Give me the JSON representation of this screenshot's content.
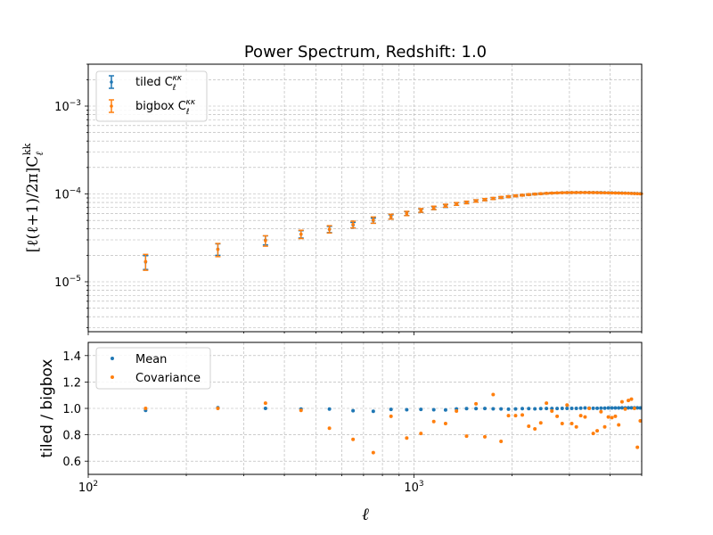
{
  "colors": {
    "tiled": "#1f77b4",
    "bigbox": "#ff7f0e"
  },
  "chart_data": [
    {
      "type": "scatter",
      "title": "Power Spectrum, Redshift: 1.0",
      "xlabel": "ℓ",
      "ylabel": "[ℓ(ℓ+1)/2π]C",
      "ylabel_sub": "ℓ",
      "ylabel_sup": "kk",
      "xscale": "log",
      "yscale": "log",
      "xlim": [
        100,
        5000
      ],
      "ylim": [
        2.7e-06,
        0.003
      ],
      "grid": true,
      "legend_position": "top-left",
      "legend": [
        {
          "label": "tiled C",
          "sub": "ℓ",
          "sup": "κκ"
        },
        {
          "label": "bigbox C",
          "sub": "ℓ",
          "sup": "κκ"
        }
      ],
      "series": [
        {
          "name": "tiled C_ℓ^κκ",
          "color": "tiled",
          "x": [
            150,
            250,
            350,
            450,
            550,
            650,
            750,
            850,
            950,
            1050,
            1150,
            1250,
            1350,
            1450,
            1550,
            1650,
            1750,
            1850,
            1950,
            2050,
            2150,
            2250,
            2350,
            2450,
            2550,
            2650,
            2750,
            2850,
            2950,
            3050,
            3150,
            3250,
            3350,
            3450,
            3550,
            3650,
            3750,
            3850,
            3950,
            4050,
            4150,
            4250,
            4350,
            4450,
            4550,
            4650,
            4750,
            4850,
            4950
          ],
          "y": [
            1.68e-05,
            2.35e-05,
            2.98e-05,
            3.48e-05,
            3.95e-05,
            4.42e-05,
            4.97e-05,
            5.48e-05,
            5.98e-05,
            6.45e-05,
            6.9e-05,
            7.28e-05,
            7.68e-05,
            8e-05,
            8.33e-05,
            8.62e-05,
            8.87e-05,
            9.1e-05,
            9.3e-05,
            9.5e-05,
            9.68e-05,
            9.82e-05,
            9.95e-05,
            0.0001005,
            0.0001015,
            0.0001022,
            0.0001028,
            0.0001033,
            0.0001036,
            0.0001038,
            0.000104,
            0.0001041,
            0.0001041,
            0.000104,
            0.0001039,
            0.0001038,
            0.0001036,
            0.0001034,
            0.0001032,
            0.000103,
            0.0001028,
            0.0001026,
            0.0001024,
            0.0001021,
            0.0001019,
            0.0001016,
            0.0001013,
            0.000101,
            0.0001007
          ],
          "yerr": [
            3e-06,
            3.5e-06,
            3.5e-06,
            3.3e-06,
            3.2e-06,
            3.2e-06,
            3.3e-06,
            3e-06,
            3e-06,
            2.8e-06,
            2.7e-06,
            2.6e-06,
            2.5e-06,
            2.4e-06,
            2.3e-06,
            2.2e-06,
            2.1e-06,
            2e-06,
            1.9e-06,
            1.8e-06,
            1.7e-06,
            1.7e-06,
            1.6e-06,
            1.6e-06,
            1.5e-06,
            1.5e-06,
            1.4e-06,
            1.4e-06,
            1.4e-06,
            1.3e-06,
            1.3e-06,
            1.3e-06,
            1.2e-06,
            1.2e-06,
            1.2e-06,
            1.2e-06,
            1.1e-06,
            1.1e-06,
            1.1e-06,
            1.1e-06,
            1.1e-06,
            1e-06,
            1e-06,
            1e-06,
            1e-06,
            1e-06,
            1e-06,
            1e-06,
            1e-06
          ]
        },
        {
          "name": "bigbox C_ℓ^κκ",
          "color": "bigbox",
          "x": [
            150,
            250,
            350,
            450,
            550,
            650,
            750,
            850,
            950,
            1050,
            1150,
            1250,
            1350,
            1450,
            1550,
            1650,
            1750,
            1850,
            1950,
            2050,
            2150,
            2250,
            2350,
            2450,
            2550,
            2650,
            2750,
            2850,
            2950,
            3050,
            3150,
            3250,
            3350,
            3450,
            3550,
            3650,
            3750,
            3850,
            3950,
            4050,
            4150,
            4250,
            4350,
            4450,
            4550,
            4650,
            4750,
            4850,
            4950
          ],
          "y": [
            1.7e-05,
            2.33e-05,
            2.94e-05,
            3.48e-05,
            3.97e-05,
            4.5e-05,
            5.05e-05,
            5.52e-05,
            6e-05,
            6.5e-05,
            6.95e-05,
            7.35e-05,
            7.7e-05,
            8e-05,
            8.32e-05,
            8.62e-05,
            8.88e-05,
            9.12e-05,
            9.32e-05,
            9.52e-05,
            9.68e-05,
            9.83e-05,
            9.96e-05,
            0.0001006,
            0.0001015,
            0.0001022,
            0.0001028,
            0.0001032,
            0.0001035,
            0.0001037,
            0.0001038,
            0.0001038,
            0.0001038,
            0.0001037,
            0.0001036,
            0.0001034,
            0.0001032,
            0.000103,
            0.0001028,
            0.0001026,
            0.0001024,
            0.0001022,
            0.000102,
            0.0001018,
            0.0001015,
            0.0001012,
            0.0001009,
            0.0001006,
            0.0001003
          ],
          "yerr": [
            3.5e-06,
            4e-06,
            4e-06,
            3.8e-06,
            3.8e-06,
            4e-06,
            4.2e-06,
            3.5e-06,
            3.4e-06,
            3.2e-06,
            3.1e-06,
            2.9e-06,
            2.8e-06,
            2.7e-06,
            2.6e-06,
            2.5e-06,
            2.4e-06,
            2.3e-06,
            2.2e-06,
            2.1e-06,
            2e-06,
            1.9e-06,
            1.9e-06,
            1.8e-06,
            1.7e-06,
            1.7e-06,
            1.6e-06,
            1.6e-06,
            1.5e-06,
            1.5e-06,
            1.5e-06,
            1.4e-06,
            1.4e-06,
            1.4e-06,
            1.3e-06,
            1.3e-06,
            1.3e-06,
            1.3e-06,
            1.2e-06,
            1.2e-06,
            1.2e-06,
            1.2e-06,
            1.2e-06,
            1.1e-06,
            1.1e-06,
            1.1e-06,
            1.1e-06,
            1.1e-06,
            1.1e-06
          ]
        }
      ],
      "xticks": [
        "10",
        "10"
      ],
      "xtick_sups": [
        "2",
        "3"
      ],
      "yticks": [
        "10",
        "10",
        "10"
      ],
      "ytick_sups": [
        "−5",
        "−4",
        "−3"
      ]
    },
    {
      "type": "scatter",
      "title": "",
      "xlabel": "ℓ",
      "ylabel": "tiled / bigbox",
      "xscale": "log",
      "xlim": [
        100,
        5000
      ],
      "ylim": [
        0.5,
        1.5
      ],
      "grid": true,
      "legend_position": "top-left",
      "xticks": [
        "10",
        "10"
      ],
      "xtick_sups": [
        "2",
        "3"
      ],
      "yticks": [
        "0.6",
        "0.8",
        "1.0",
        "1.2",
        "1.4"
      ],
      "series": [
        {
          "name": "Mean",
          "color": "tiled",
          "x": [
            150,
            250,
            350,
            450,
            550,
            650,
            750,
            850,
            950,
            1050,
            1150,
            1250,
            1350,
            1450,
            1550,
            1650,
            1750,
            1850,
            1950,
            2050,
            2150,
            2250,
            2350,
            2450,
            2550,
            2650,
            2750,
            2850,
            2950,
            3050,
            3150,
            3250,
            3350,
            3450,
            3550,
            3650,
            3750,
            3850,
            3950,
            4050,
            4150,
            4250,
            4350,
            4450,
            4550,
            4650,
            4750,
            4850,
            4950
          ],
          "y": [
            0.985,
            1.005,
            1.0,
            0.995,
            0.995,
            0.982,
            0.978,
            0.992,
            0.99,
            0.992,
            0.99,
            0.988,
            0.996,
            0.998,
            0.998,
            0.999,
            0.997,
            0.996,
            0.994,
            0.996,
            0.998,
            0.998,
            0.997,
            0.998,
            0.999,
            0.999,
            0.999,
            1.0,
            1.0,
            1.0,
            1.0,
            1.002,
            1.003,
            1.002,
            1.001,
            1.001,
            1.002,
            1.002,
            1.003,
            1.003,
            1.003,
            1.003,
            1.004,
            1.003,
            1.004,
            1.004,
            1.004,
            1.004,
            1.003
          ]
        },
        {
          "name": "Covariance",
          "color": "bigbox",
          "x": [
            150,
            250,
            350,
            450,
            550,
            650,
            750,
            850,
            950,
            1050,
            1150,
            1250,
            1350,
            1450,
            1550,
            1650,
            1750,
            1850,
            1950,
            2050,
            2150,
            2250,
            2350,
            2450,
            2550,
            2650,
            2750,
            2850,
            2950,
            3050,
            3150,
            3250,
            3350,
            3450,
            3550,
            3650,
            3750,
            3850,
            3950,
            4050,
            4150,
            4250,
            4350,
            4450,
            4550,
            4650,
            4750,
            4850,
            4950
          ],
          "y": [
            1.0,
            1.0,
            1.04,
            0.985,
            0.85,
            0.765,
            0.665,
            0.94,
            0.775,
            0.81,
            0.9,
            0.885,
            0.98,
            0.79,
            1.035,
            0.785,
            1.105,
            0.75,
            0.945,
            0.945,
            0.95,
            0.865,
            0.845,
            0.89,
            1.04,
            0.98,
            0.94,
            0.885,
            1.025,
            0.885,
            0.86,
            0.945,
            0.935,
            1.0,
            0.81,
            0.83,
            0.975,
            0.86,
            0.935,
            0.93,
            0.94,
            0.875,
            1.05,
            0.995,
            1.06,
            1.07,
            1.0,
            0.705,
            0.905
          ]
        }
      ]
    }
  ]
}
